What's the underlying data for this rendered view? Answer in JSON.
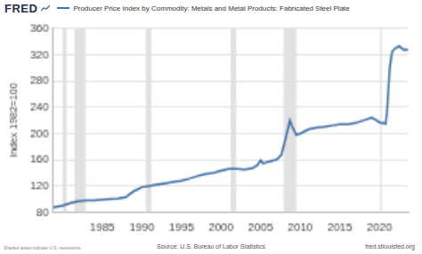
{
  "chart_data": {
    "type": "line",
    "y_label": "Index 1982=100",
    "annotations": {
      "logo": "FRED",
      "source": "Source: U.S. Bureau of Labor Statistics",
      "site": "fred.stlouisfed.org",
      "note": "Shaded areas indicate U.S. recessions."
    },
    "legend": "top",
    "grid": true,
    "xlim": [
      1978.8,
      2023.6
    ],
    "xticks": [
      1985,
      1990,
      1995,
      2000,
      2005,
      2010,
      2015,
      2020
    ],
    "ylim": [
      80,
      360
    ],
    "yticks": [
      80,
      120,
      160,
      200,
      240,
      280,
      320,
      360
    ],
    "recessions": [
      [
        1980.0,
        1980.5
      ],
      [
        1981.5,
        1982.9
      ],
      [
        1990.5,
        1991.2
      ],
      [
        2001.2,
        2001.9
      ],
      [
        2007.9,
        2009.5
      ],
      [
        2020.1,
        2020.3
      ]
    ],
    "series": [
      {
        "name": "Producer Price Index by Commodity: Metals and Metal Products: Fabricated Steel Plate",
        "color": "#4572a7",
        "x": [
          1978.8,
          1980.0,
          1981.0,
          1982.0,
          1983.0,
          1984.0,
          1985.0,
          1986.0,
          1987.0,
          1988.0,
          1988.5,
          1989.0,
          1990.0,
          1991.0,
          1992.0,
          1993.0,
          1994.0,
          1995.0,
          1996.0,
          1997.0,
          1998.0,
          1999.0,
          2000.0,
          2001.0,
          2002.0,
          2003.0,
          2004.0,
          2004.6,
          2005.0,
          2005.3,
          2006.0,
          2007.0,
          2007.6,
          2008.0,
          2008.4,
          2008.7,
          2009.0,
          2009.5,
          2010.0,
          2011.0,
          2012.0,
          2013.0,
          2014.0,
          2015.0,
          2016.0,
          2017.0,
          2018.0,
          2019.0,
          2019.5,
          2020.0,
          2020.8,
          2021.0,
          2021.3,
          2021.6,
          2022.0,
          2022.5,
          2023.0,
          2023.6
        ],
        "values": [
          87,
          90,
          94,
          97,
          98,
          98,
          99,
          100,
          101,
          103,
          108,
          112,
          118,
          120,
          122,
          124,
          126,
          128,
          131,
          135,
          138,
          140,
          143,
          146,
          146,
          145,
          147,
          152,
          159,
          154,
          157,
          160,
          167,
          185,
          205,
          220,
          210,
          198,
          200,
          206,
          209,
          210,
          212,
          214,
          214,
          216,
          220,
          224,
          221,
          217,
          215,
          240,
          300,
          325,
          330,
          333,
          328,
          328
        ]
      }
    ]
  }
}
